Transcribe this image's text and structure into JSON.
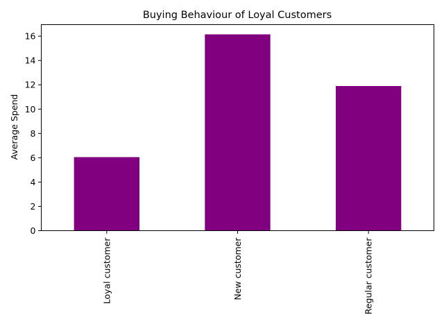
{
  "chart_data": {
    "type": "bar",
    "title": "Buying Behaviour of Loyal Customers",
    "xlabel": "",
    "ylabel": "Average Spend",
    "categories": [
      "Loyal customer",
      "New customer",
      "Regular customer"
    ],
    "values": [
      6.05,
      16.15,
      11.9
    ],
    "ylim": [
      0,
      16.95
    ],
    "yticks": [
      0,
      2,
      4,
      6,
      8,
      10,
      12,
      14,
      16
    ],
    "grid": false,
    "legend": "none",
    "bar_color": "#800080",
    "x_tick_rotation": "vertical"
  }
}
